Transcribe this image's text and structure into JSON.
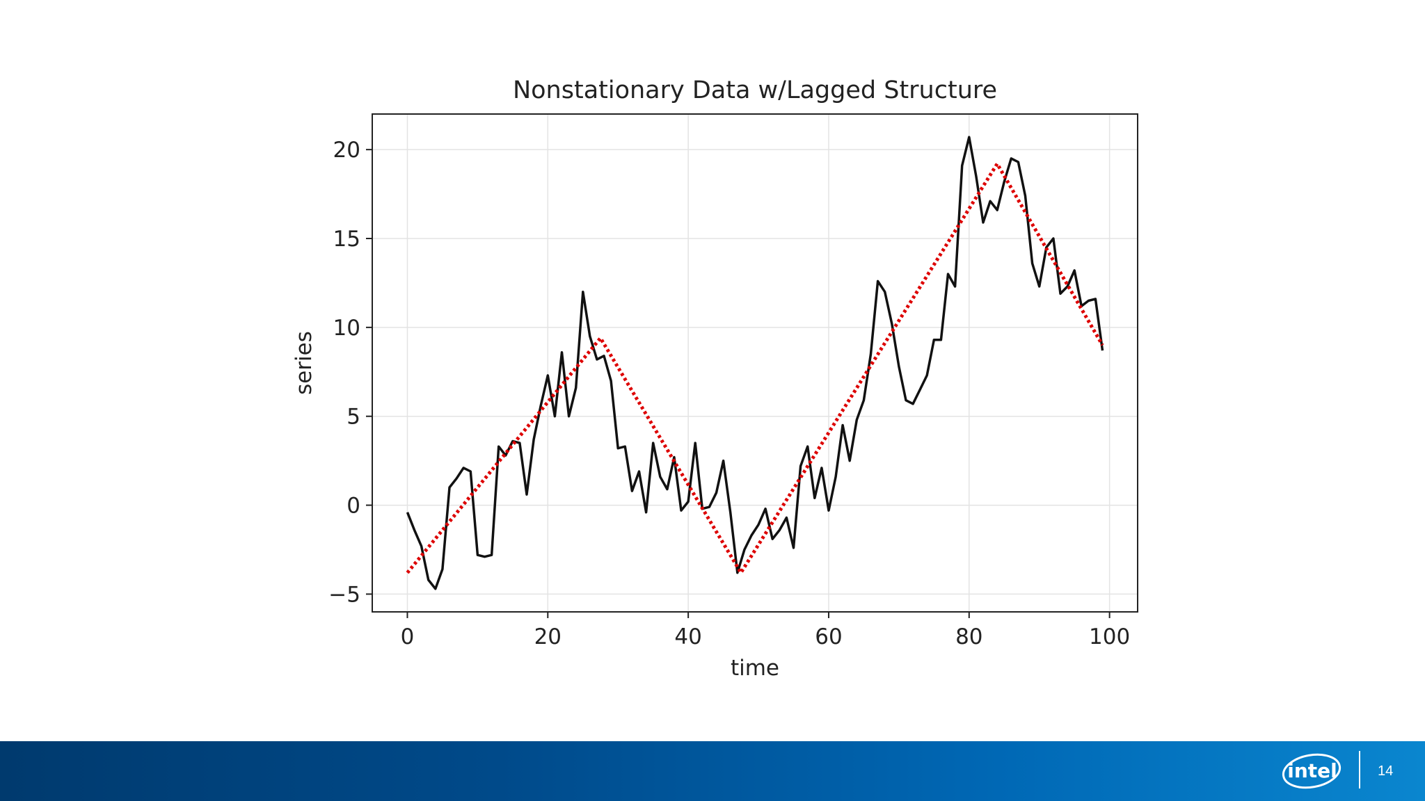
{
  "slide": {
    "page_number": "14",
    "brand": "intel"
  },
  "chart_data": {
    "type": "line",
    "title": "Nonstationary Data w/Lagged Structure",
    "xlabel": "time",
    "ylabel": "series",
    "xlim": [
      -5,
      104
    ],
    "ylim": [
      -6,
      22
    ],
    "x_ticks": [
      0,
      20,
      40,
      60,
      80,
      100
    ],
    "y_ticks": [
      -5,
      0,
      5,
      10,
      15,
      20
    ],
    "grid": true,
    "legend": "none",
    "series": [
      {
        "color": "#111111",
        "style": "solid",
        "values": [
          -0.4,
          -1.4,
          -2.3,
          -4.2,
          -4.7,
          -3.6,
          1.0,
          1.5,
          2.1,
          1.9,
          -2.8,
          -2.9,
          -2.8,
          3.3,
          2.8,
          3.6,
          3.5,
          0.6,
          3.7,
          5.6,
          7.3,
          5.0,
          8.6,
          5.0,
          6.6,
          12.0,
          9.5,
          8.2,
          8.4,
          7.0,
          3.2,
          3.3,
          0.8,
          1.9,
          -0.4,
          3.5,
          1.6,
          0.9,
          2.7,
          -0.3,
          0.2,
          3.5,
          -0.2,
          -0.1,
          0.7,
          2.5,
          -0.4,
          -3.8,
          -2.5,
          -1.7,
          -1.1,
          -0.2,
          -1.9,
          -1.4,
          -0.7,
          -2.4,
          2.2,
          3.3,
          0.4,
          2.1,
          -0.3,
          1.6,
          4.5,
          2.5,
          4.8,
          5.9,
          8.5,
          12.6,
          12.0,
          10.2,
          7.8,
          5.9,
          5.7,
          6.5,
          7.3,
          9.3,
          9.3,
          13.0,
          12.3,
          19.1,
          20.7,
          18.5,
          15.9,
          17.1,
          16.6,
          18.2,
          19.5,
          19.3,
          17.4,
          13.6,
          12.3,
          14.5,
          15.0,
          11.9,
          12.3,
          13.2,
          11.2,
          11.5,
          11.6,
          8.7
        ]
      },
      {
        "color": "#dd0000",
        "style": "dotted",
        "points": [
          [
            0,
            -3.8
          ],
          [
            27.5,
            9.4
          ],
          [
            47.5,
            -3.8
          ],
          [
            84,
            19.2
          ],
          [
            99,
            9.0
          ]
        ]
      }
    ]
  }
}
